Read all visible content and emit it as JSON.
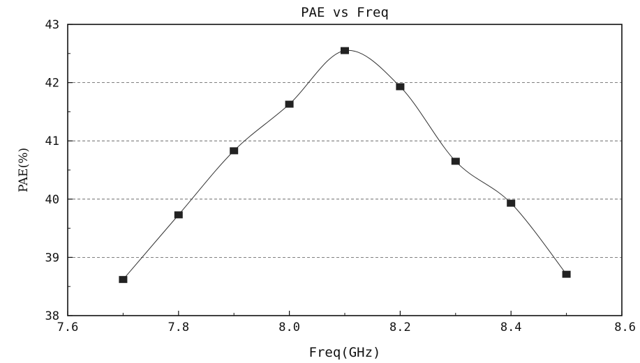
{
  "chart_data": {
    "type": "line",
    "title": "PAE vs Freq",
    "xlabel": "Freq(GHz)",
    "ylabel": "PAE(%)",
    "xlim": [
      7.6,
      8.6
    ],
    "ylim": [
      38,
      43
    ],
    "xticks": [
      "7.6",
      "7.8",
      "8.0",
      "8.2",
      "8.4",
      "8.6"
    ],
    "yticks": [
      "38",
      "39",
      "40",
      "41",
      "42",
      "43"
    ],
    "grid": "horizontal dashed",
    "marker": "square",
    "series": [
      {
        "x": [
          7.7,
          7.8,
          7.9,
          8.0,
          8.1,
          8.2,
          8.3,
          8.4,
          8.5
        ],
        "values": [
          38.62,
          39.73,
          40.83,
          41.63,
          42.55,
          41.93,
          40.65,
          39.93,
          38.71
        ]
      }
    ]
  }
}
